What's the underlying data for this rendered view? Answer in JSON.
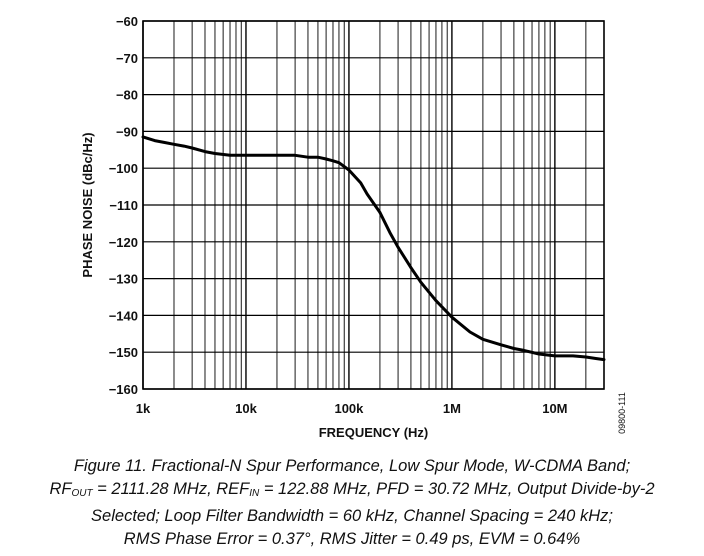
{
  "chart_data": {
    "type": "line",
    "title": "",
    "xlabel": "FREQUENCY (Hz)",
    "ylabel": "PHASE NOISE (dBc/Hz)",
    "xscale": "log",
    "xlim": [
      1000,
      30000000
    ],
    "ylim": [
      -160,
      -60
    ],
    "grid": true,
    "x_tick_labels": [
      "1k",
      "10k",
      "100k",
      "1M",
      "10M"
    ],
    "y_tick_labels": [
      "−60",
      "−70",
      "−80",
      "−90",
      "−100",
      "−110",
      "−120",
      "−130",
      "−140",
      "−150",
      "−160"
    ],
    "series": [
      {
        "x": [
          1000,
          1300,
          1600,
          2000,
          2500,
          3000,
          4000,
          5000,
          7000,
          10000,
          15000,
          20000,
          30000,
          40000,
          50000,
          60000,
          70000,
          80000,
          100000,
          130000,
          150000,
          200000,
          250000,
          300000,
          400000,
          500000,
          700000,
          1000000,
          1500000,
          2000000,
          3000000,
          4000000,
          5000000,
          7000000,
          10000000,
          15000000,
          20000000,
          25000000,
          30000000
        ],
        "y": [
          -91.5,
          -92.5,
          -93,
          -93.5,
          -94,
          -94.5,
          -95.5,
          -96,
          -96.5,
          -96.5,
          -96.5,
          -96.5,
          -96.5,
          -97,
          -97,
          -97.5,
          -98,
          -98.5,
          -100.5,
          -104,
          -107,
          -112,
          -117.5,
          -121.5,
          -127,
          -131,
          -136,
          -140.5,
          -144.5,
          -146.5,
          -148,
          -149,
          -149.5,
          -150.5,
          -151,
          -151,
          -151.3,
          -151.7,
          -152
        ]
      }
    ]
  },
  "figure_id": "09800-111",
  "caption": {
    "line1": "Figure 11. Fractional-N Spur Performance, Low Spur Mode, W-CDMA Band;",
    "line2_rf": "RF",
    "line2_rf_sub": "OUT",
    "line2_mid": " = 2111.28 MHz, REF",
    "line2_ref_sub": "IN",
    "line2_rest": " = 122.88 MHz, PFD = 30.72 MHz, Output Divide-by-2",
    "line3": "Selected; Loop Filter Bandwidth = 60 kHz, Channel Spacing = 240 kHz;",
    "line4": "RMS Phase Error = 0.37°, RMS Jitter = 0.49 ps, EVM = 0.64%"
  }
}
